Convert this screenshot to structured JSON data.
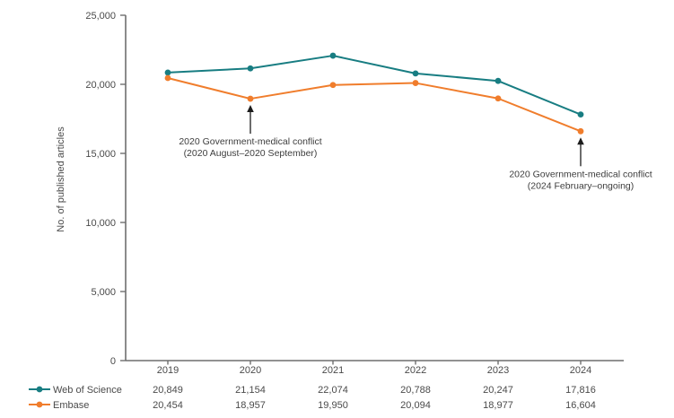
{
  "chart_data": {
    "type": "line",
    "title": "",
    "xlabel": "",
    "ylabel": "No. of published articles",
    "ylim": [
      0,
      25000
    ],
    "ytick_step": 5000,
    "ytick_values": [
      0,
      5000,
      10000,
      15000,
      20000,
      25000
    ],
    "ytick_labels": [
      "0",
      "5,000",
      "10,000",
      "15,000",
      "20,000",
      "25,000"
    ],
    "categories": [
      "2019",
      "2020",
      "2021",
      "2022",
      "2023",
      "2024"
    ],
    "series": [
      {
        "name": "Web of Science",
        "color": "#187d82",
        "values": [
          20849,
          21154,
          22074,
          20788,
          20247,
          17816
        ],
        "labels": [
          "20,849",
          "21,154",
          "22,074",
          "20,788",
          "20,247",
          "17,816"
        ]
      },
      {
        "name": "Embase",
        "color": "#f07d2c",
        "values": [
          20454,
          18957,
          19950,
          20094,
          18977,
          16604
        ],
        "labels": [
          "20,454",
          "18,957",
          "19,950",
          "20,094",
          "18,977",
          "16,604"
        ]
      }
    ],
    "grid": false,
    "legend_position": "bottom-left",
    "annotations": [
      {
        "line1": "2020 Government-medical conflict",
        "line2": "(2020 August–2020 September)",
        "target_category": "2020",
        "target_series": "Embase"
      },
      {
        "line1": "2020 Government-medical conflict",
        "line2": "(2024 February–ongoing)",
        "target_category": "2024",
        "target_series": "Embase"
      }
    ],
    "colors": {
      "axis": "#6e6e6e",
      "text": "#4a4a4a",
      "arrow": "#1c1c1c"
    }
  }
}
